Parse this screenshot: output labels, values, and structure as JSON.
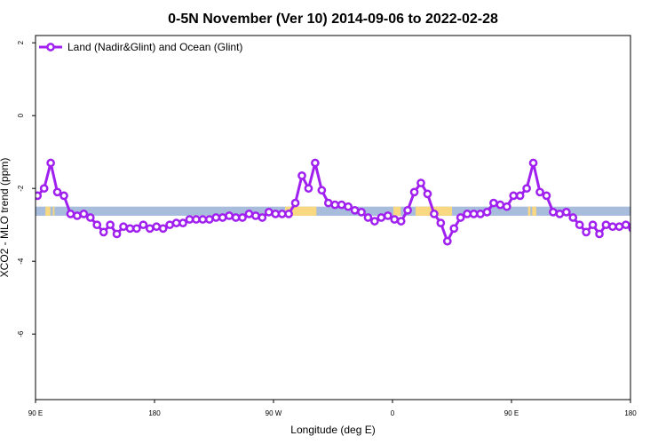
{
  "chart_data": {
    "type": "line",
    "title": "0-5N November (Ver 10)   2014-09-06 to 2022-02-28",
    "xlabel": "Longitude (deg E)",
    "ylabel": "XCO2 - MLO trend (ppm)",
    "xlim": [
      90,
      450
    ],
    "ylim": [
      -7.8,
      2.2
    ],
    "x_ticks": [
      {
        "value": 90,
        "label": "90 E"
      },
      {
        "value": 162,
        "label": "180"
      },
      {
        "value": 234,
        "label": "90 W"
      },
      {
        "value": 306,
        "label": "0"
      },
      {
        "value": 378,
        "label": "90 E"
      },
      {
        "value": 450,
        "label": "180"
      }
    ],
    "y_ticks": [
      {
        "value": 2,
        "label": "2"
      },
      {
        "value": 0,
        "label": "0"
      },
      {
        "value": -2,
        "label": "-2"
      },
      {
        "value": -4,
        "label": "-4"
      },
      {
        "value": -6,
        "label": "-6"
      }
    ],
    "grid": false,
    "legend": {
      "position": "top-left"
    },
    "band": {
      "y_top": -2.5,
      "y_bottom": -2.75,
      "base_color": "#a8bcdc",
      "land_color": "#f8d880",
      "land_segments": [
        [
          96,
          99
        ],
        [
          100.5,
          101.5
        ],
        [
          241,
          260
        ],
        [
          306.5,
          311
        ],
        [
          320,
          342
        ],
        [
          388,
          389.5
        ],
        [
          390.5,
          393
        ]
      ]
    },
    "series": [
      {
        "name": "Land (Nadir&Glint) and Ocean (Glint)",
        "color": "#a020f0",
        "x": [
          91.2,
          95.2,
          99.2,
          103.2,
          107.2,
          111.2,
          115.2,
          119.2,
          123.2,
          127.2,
          131.2,
          135.2,
          139.2,
          143.2,
          147.2,
          151.2,
          155.2,
          159.2,
          163.2,
          167.2,
          171.2,
          175.2,
          179.2,
          183.2,
          187.2,
          191.2,
          195.2,
          199.2,
          203.2,
          207.2,
          211.2,
          215.2,
          219.2,
          223.2,
          227.2,
          231.2,
          235.2,
          239.2,
          243.2,
          247.2,
          251.2,
          255.2,
          259.2,
          263.2,
          267.2,
          271.2,
          275.2,
          279.2,
          283.2,
          287.2,
          291.2,
          295.2,
          299.2,
          303.2,
          307.2,
          311.2,
          315.2,
          319.2,
          323.2,
          327.2,
          331.2,
          335.2,
          339.2,
          343.2,
          347.2,
          351.2,
          355.2,
          359.2,
          363.2,
          367.2,
          371.2,
          375.2,
          379.2,
          383.2,
          387.2,
          391.2,
          395.2,
          399.2,
          403.2,
          407.2,
          411.2,
          415.2,
          419.2,
          423.2,
          427.2,
          431.2,
          435.2,
          439.2,
          443.2,
          447.2,
          451.2
        ],
        "y": [
          -2.2,
          -2.0,
          -1.3,
          -2.1,
          -2.2,
          -2.7,
          -2.75,
          -2.7,
          -2.8,
          -3.0,
          -3.2,
          -3.0,
          -3.25,
          -3.05,
          -3.1,
          -3.1,
          -3.0,
          -3.1,
          -3.05,
          -3.1,
          -3.0,
          -2.95,
          -2.95,
          -2.85,
          -2.85,
          -2.85,
          -2.85,
          -2.8,
          -2.8,
          -2.75,
          -2.8,
          -2.8,
          -2.7,
          -2.75,
          -2.8,
          -2.65,
          -2.7,
          -2.7,
          -2.7,
          -2.4,
          -1.65,
          -2.0,
          -1.3,
          -2.05,
          -2.4,
          -2.45,
          -2.45,
          -2.5,
          -2.6,
          -2.65,
          -2.8,
          -2.9,
          -2.8,
          -2.75,
          -2.85,
          -2.9,
          -2.6,
          -2.1,
          -1.85,
          -2.15,
          -2.7,
          -2.95,
          -3.45,
          -3.1,
          -2.8,
          -2.7,
          -2.7,
          -2.7,
          -2.65,
          -2.4,
          -2.45,
          -2.5,
          -2.2,
          -2.2,
          -2.0,
          -1.3,
          -2.1,
          -2.2,
          -2.65,
          -2.7,
          -2.65,
          -2.8,
          -3.0,
          -3.2,
          -3.0,
          -3.25,
          -3.0,
          -3.05,
          -3.05,
          -3.0,
          -3.1
        ]
      }
    ]
  }
}
